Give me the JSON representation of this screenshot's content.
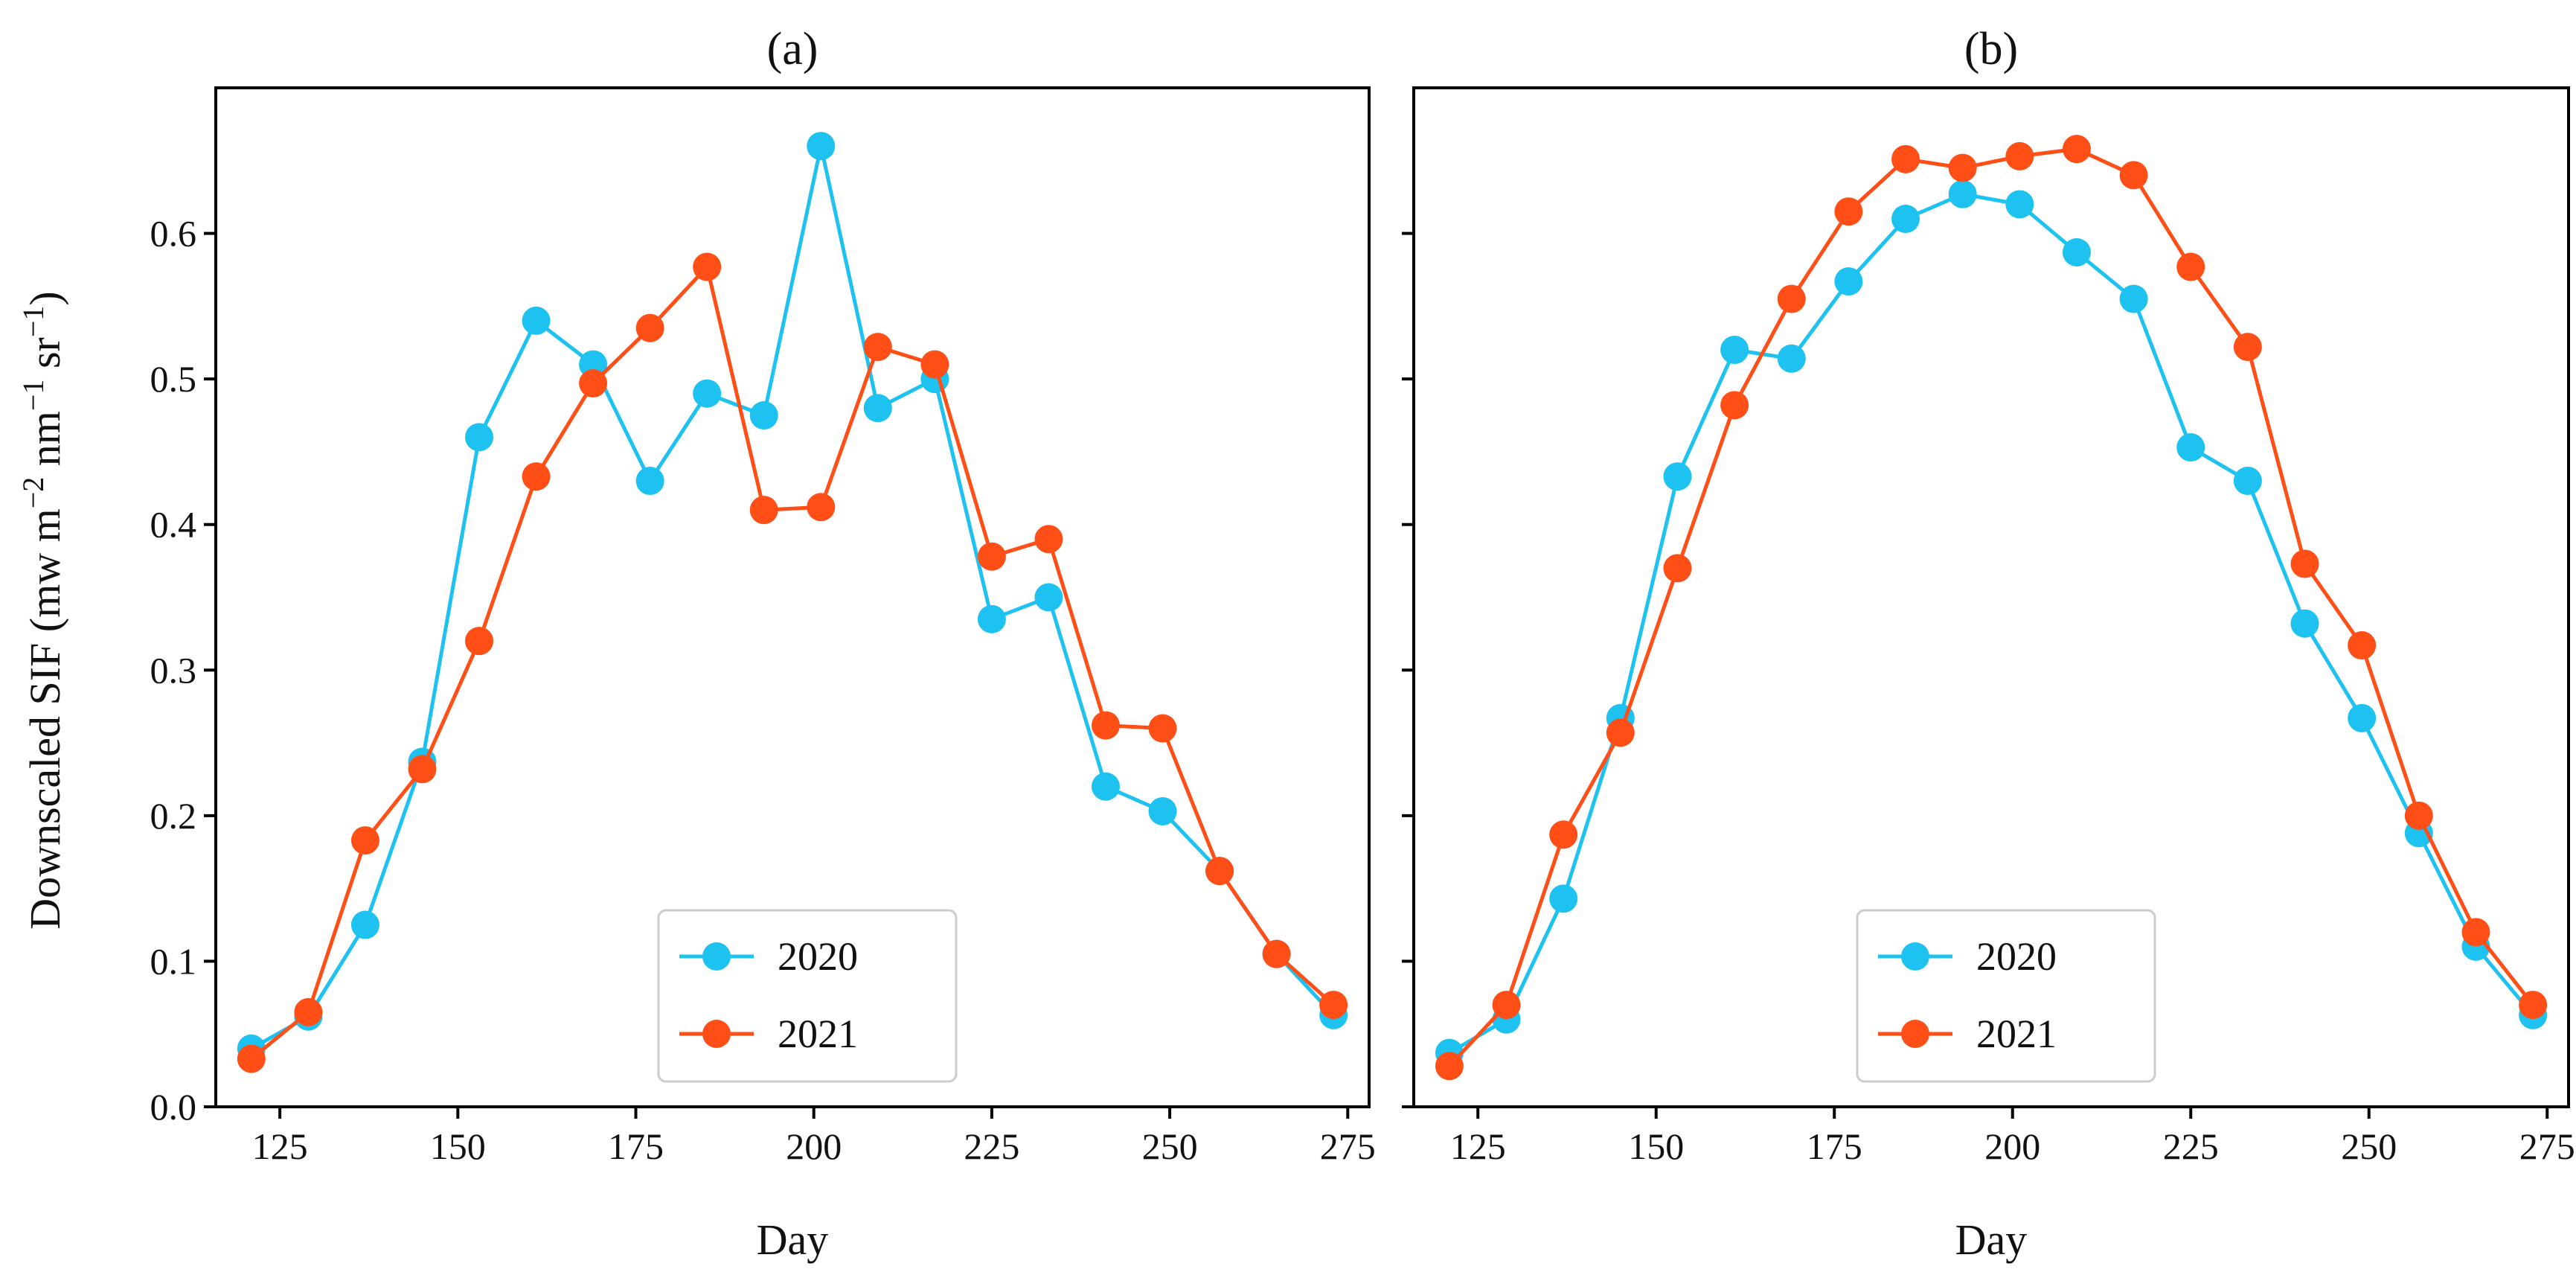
{
  "figure": {
    "ylabel_main": "Downscaled SIF (mw m",
    "ylabel_sup1": "−2",
    "ylabel_mid": " nm",
    "ylabel_sup2": "−1",
    "ylabel_end": " sr",
    "ylabel_sup3": "−1",
    "ylabel_close": ")"
  },
  "chart_data": [
    {
      "type": "line",
      "title": "(a)",
      "xlabel": "Day",
      "ylabel": "Downscaled SIF (mw m−2 nm−1 sr−1)",
      "xlim": [
        116,
        278
      ],
      "ylim": [
        0.0,
        0.7
      ],
      "xticks": [
        125,
        150,
        175,
        200,
        225,
        250,
        275
      ],
      "yticks": [
        0.0,
        0.1,
        0.2,
        0.3,
        0.4,
        0.5,
        0.6
      ],
      "yticklabels": [
        "0.0",
        "0.1",
        "0.2",
        "0.3",
        "0.4",
        "0.5",
        "0.6"
      ],
      "show_yticklabels": true,
      "grid": false,
      "legend": "lower-center",
      "x": [
        121,
        129,
        137,
        145,
        153,
        161,
        169,
        177,
        185,
        193,
        201,
        209,
        217,
        225,
        233,
        241,
        249,
        257,
        265,
        273
      ],
      "series": [
        {
          "name": "2020",
          "color": "#1EC2F0",
          "values": [
            0.04,
            0.062,
            0.125,
            0.237,
            0.46,
            0.54,
            0.51,
            0.43,
            0.49,
            0.475,
            0.66,
            0.48,
            0.5,
            0.335,
            0.35,
            0.22,
            0.203,
            0.162,
            0.105,
            0.063
          ]
        },
        {
          "name": "2021",
          "color": "#FF4E16",
          "values": [
            0.033,
            0.065,
            0.183,
            0.232,
            0.32,
            0.433,
            0.497,
            0.535,
            0.577,
            0.41,
            0.412,
            0.522,
            0.51,
            0.378,
            0.39,
            0.262,
            0.26,
            0.162,
            0.105,
            0.07
          ]
        }
      ]
    },
    {
      "type": "line",
      "title": "(b)",
      "xlabel": "Day",
      "ylabel": "",
      "xlim": [
        116,
        278
      ],
      "ylim": [
        0.0,
        0.7
      ],
      "xticks": [
        125,
        150,
        175,
        200,
        225,
        250,
        275
      ],
      "yticks": [
        0.0,
        0.1,
        0.2,
        0.3,
        0.4,
        0.5,
        0.6
      ],
      "yticklabels": [],
      "show_yticklabels": false,
      "grid": false,
      "legend": "lower-center",
      "x": [
        121,
        129,
        137,
        145,
        153,
        161,
        169,
        177,
        185,
        193,
        201,
        209,
        217,
        225,
        233,
        241,
        249,
        257,
        265,
        273
      ],
      "series": [
        {
          "name": "2020",
          "color": "#1EC2F0",
          "values": [
            0.037,
            0.06,
            0.143,
            0.267,
            0.433,
            0.52,
            0.514,
            0.567,
            0.61,
            0.627,
            0.62,
            0.587,
            0.555,
            0.453,
            0.43,
            0.332,
            0.267,
            0.188,
            0.11,
            0.063
          ]
        },
        {
          "name": "2021",
          "color": "#FF4E16",
          "values": [
            0.028,
            0.07,
            0.187,
            0.257,
            0.37,
            0.482,
            0.555,
            0.615,
            0.651,
            0.645,
            0.653,
            0.658,
            0.64,
            0.577,
            0.522,
            0.373,
            0.317,
            0.2,
            0.12,
            0.07
          ]
        }
      ]
    }
  ]
}
